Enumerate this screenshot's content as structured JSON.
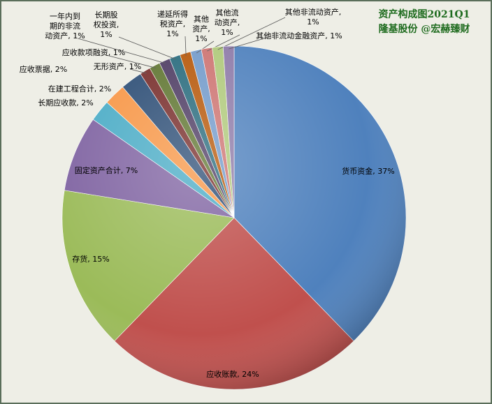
{
  "chart_data": {
    "type": "pie",
    "title": [
      "资产构成图2021Q1",
      "隆基股份 @宏赫臻财"
    ],
    "values": [
      37,
      24,
      15,
      7,
      2,
      2,
      2,
      1,
      1,
      1,
      1,
      1,
      1,
      1,
      1,
      1
    ],
    "value_labels": [
      [
        "货币资金, 37%"
      ],
      [
        "应收账款, 24%"
      ],
      [
        "存货, 15%"
      ],
      [
        "固定资产合计, 7%"
      ],
      [
        "长期应收款, 2%"
      ],
      [
        "在建工程合计, 2%"
      ],
      [
        "应收票据, 2%"
      ],
      [
        "无形资产, 1%"
      ],
      [
        "应收款项融资, 1%"
      ],
      [
        "一年内到",
        "期的非流",
        "动资产, 1%"
      ],
      [
        "长期股",
        "权投资,",
        "1%"
      ],
      [
        "递延所得",
        "税资产,",
        "1%"
      ],
      [
        "其他",
        "资产,",
        "1%"
      ],
      [
        "其他流",
        "动资产,",
        "1%"
      ],
      [
        "其他非流动资产,",
        "1%"
      ],
      [
        "其他非流动金融资产, 1%"
      ]
    ],
    "colors": [
      "#4f81bd",
      "#c0504d",
      "#9bbb59",
      "#8064a2",
      "#4bacc6",
      "#f79646",
      "#2c4d75",
      "#772c2a",
      "#5f7530",
      "#4d3b62",
      "#276a7c",
      "#b65708",
      "#729aca",
      "#cd7371",
      "#afc97a",
      "#8d7aa8"
    ]
  }
}
